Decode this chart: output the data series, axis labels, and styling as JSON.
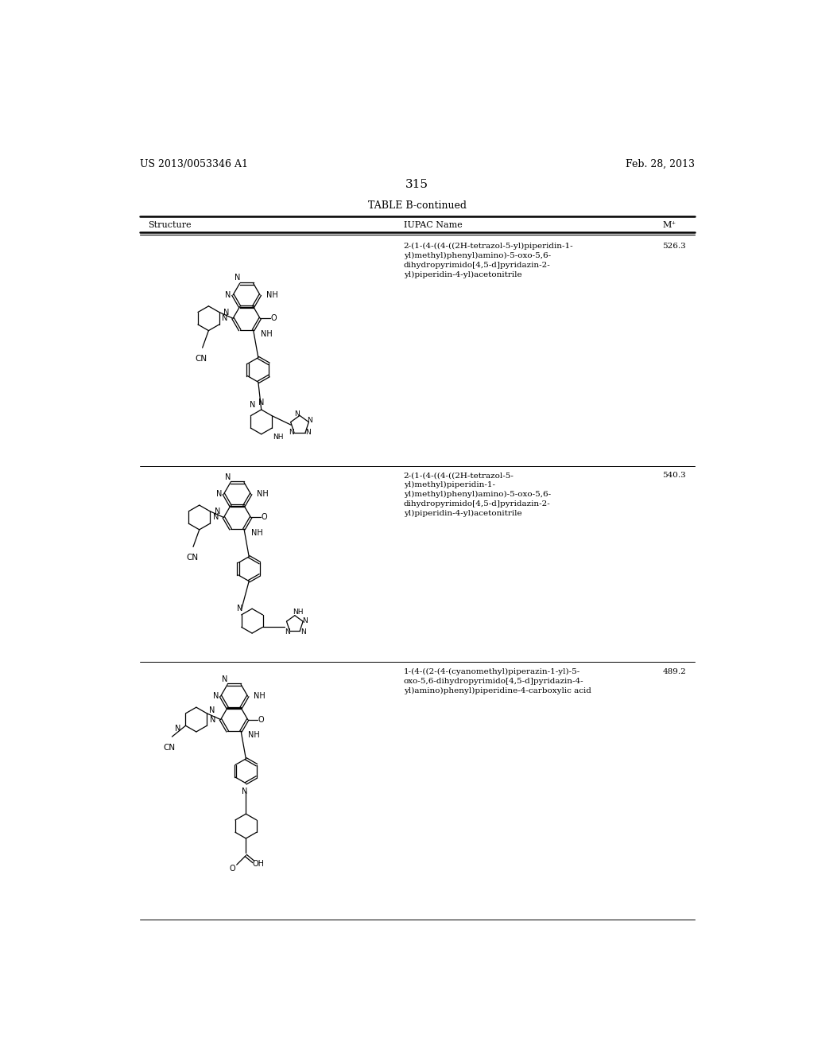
{
  "background_color": "#ffffff",
  "header_left": "US 2013/0053346 A1",
  "header_right": "Feb. 28, 2013",
  "page_number": "315",
  "table_title": "TABLE B-continued",
  "iupac1": "2-(1-(4-((4-((2H-tetrazol-5-yl)piperidin-1-\nyl)methyl)phenyl)amino)-5-oxo-5,6-\ndihydropyrimido[4,5-d]pyridazin-2-\nyl)piperidin-4-yl)acetonitrile",
  "mass1": "526.3",
  "iupac2": "2-(1-(4-((4-((2H-tetrazol-5-\nyl)methyl)piperidin-1-\nyl)methyl)phenyl)amino)-5-oxo-5,6-\ndihydropyrimido[4,5-d]pyridazin-2-\nyl)piperidin-4-yl)acetonitrile",
  "mass2": "540.3",
  "iupac3": "1-(4-((2-(4-(cyanomethyl)piperazin-1-yl)-5-\noxo-5,6-dihydropyrimido[4,5-d]pyridazin-4-\nyl)amino)phenyl)piperidine-4-carboxylic acid",
  "mass3": "489.2"
}
